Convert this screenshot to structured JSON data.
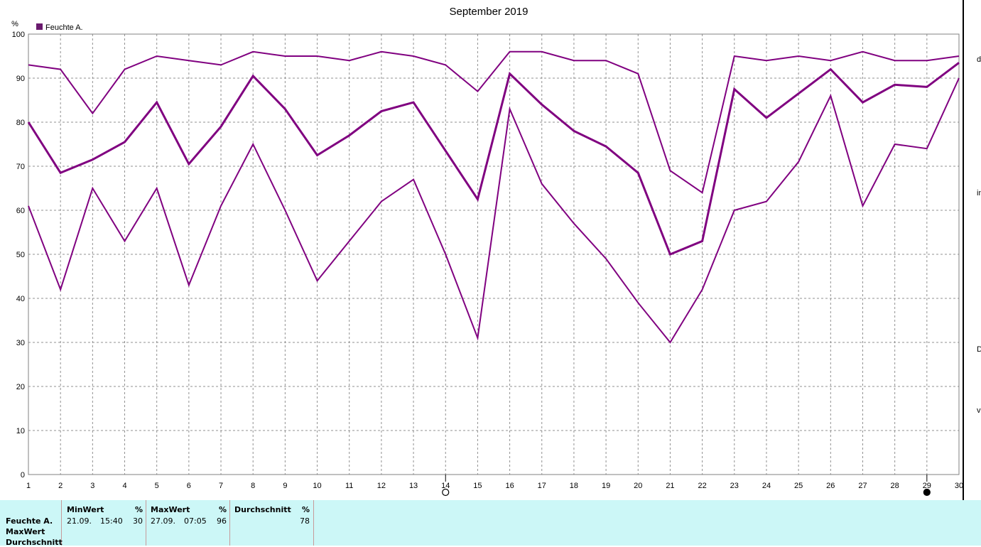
{
  "chart_data": {
    "type": "line",
    "title": "September 2019",
    "ylabel": "%",
    "legend": "Feuchte A.",
    "legend_color": "#6a1a6e",
    "line_color": "#800080",
    "x": [
      1,
      2,
      3,
      4,
      5,
      6,
      7,
      8,
      9,
      10,
      11,
      12,
      13,
      14,
      15,
      16,
      17,
      18,
      19,
      20,
      21,
      22,
      23,
      24,
      25,
      26,
      27,
      28,
      29,
      30
    ],
    "ylim": [
      0,
      100
    ],
    "yticks": [
      0,
      10,
      20,
      30,
      40,
      50,
      60,
      70,
      80,
      90,
      100
    ],
    "grid": true,
    "series": [
      {
        "role": "max",
        "values": [
          93,
          92,
          82,
          92,
          95,
          94,
          93,
          96,
          95,
          95,
          94,
          96,
          95,
          93,
          87,
          96,
          96,
          94,
          94,
          91,
          69,
          64,
          95,
          94,
          95,
          94,
          96,
          94,
          94,
          95
        ]
      },
      {
        "role": "avg",
        "values": [
          80,
          68.5,
          71.5,
          75.5,
          84.5,
          70.5,
          79,
          90.5,
          83,
          72.5,
          77,
          82.5,
          84.5,
          73.5,
          62.5,
          91,
          84,
          78,
          74.5,
          68.5,
          50,
          53,
          87.5,
          81,
          86.5,
          92,
          84.5,
          88.5,
          88,
          93.5
        ]
      },
      {
        "role": "min",
        "values": [
          61,
          42,
          65,
          53,
          65,
          43,
          61,
          75,
          60,
          44,
          53,
          62,
          67,
          50,
          31,
          83,
          66,
          57,
          49,
          39,
          30,
          42,
          60,
          62,
          71,
          86,
          61,
          75,
          74,
          90
        ]
      }
    ],
    "markers": [
      {
        "x": 14,
        "symbol": "open-circle"
      },
      {
        "x": 29,
        "symbol": "filled-circle"
      }
    ]
  },
  "right_strip": [
    "d",
    "in",
    "D",
    "vi"
  ],
  "stats": {
    "row_labels": [
      "Feuchte A.",
      "MaxWert",
      "Durchschnitt"
    ],
    "min": {
      "header": "MinWert",
      "unit": "%",
      "date": "21.09.",
      "time": "15:40",
      "value": "30"
    },
    "max": {
      "header": "MaxWert",
      "unit": "%",
      "date": "27.09.",
      "time": "07:05",
      "value": "96"
    },
    "avg": {
      "header": "Durchschnitt",
      "unit": "%",
      "value": "78"
    }
  }
}
